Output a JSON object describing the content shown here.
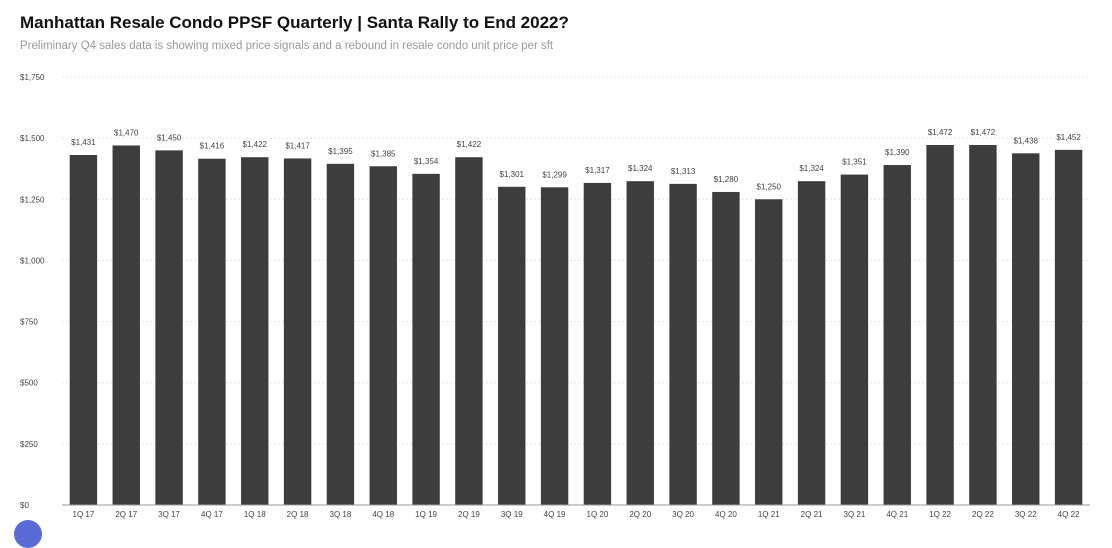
{
  "header": {
    "title": "Manhattan Resale Condo PPSF Quarterly | Santa Rally to End 2022?",
    "subtitle": "Preliminary Q4 sales data is showing mixed price signals and a rebound in resale condo unit price per sft"
  },
  "colors": {
    "bar": "#3d3d3d",
    "grid": "#e6e6e6",
    "axis": "#9a9a9a"
  },
  "chart_data": {
    "type": "bar",
    "title": "Manhattan Resale Condo PPSF Quarterly | Santa Rally to End 2022?",
    "subtitle": "Preliminary Q4 sales data is showing mixed price signals and a rebound in resale condo unit price per sft",
    "xlabel": "",
    "ylabel": "",
    "ylim": [
      0,
      1750
    ],
    "yticks": [
      0,
      250,
      500,
      750,
      1000,
      1250,
      1500,
      1750
    ],
    "ytick_labels": [
      "$0",
      "$250",
      "$500",
      "$750",
      "$1,000",
      "$1,250",
      "$1,500",
      "$1,750"
    ],
    "grid": true,
    "legend": "none",
    "categories": [
      "1Q 17",
      "2Q 17",
      "3Q 17",
      "4Q 17",
      "1Q 18",
      "2Q 18",
      "3Q 18",
      "4Q 18",
      "1Q 19",
      "2Q 19",
      "3Q 19",
      "4Q 19",
      "1Q 20",
      "2Q 20",
      "3Q 20",
      "4Q 20",
      "1Q 21",
      "2Q 21",
      "3Q 21",
      "4Q 21",
      "1Q 22",
      "2Q 22",
      "3Q 22",
      "4Q 22"
    ],
    "values": [
      1431,
      1470,
      1450,
      1416,
      1422,
      1417,
      1395,
      1385,
      1354,
      1422,
      1301,
      1299,
      1317,
      1324,
      1313,
      1280,
      1250,
      1324,
      1351,
      1390,
      1472,
      1472,
      1438,
      1452
    ],
    "data_labels": [
      "$1,431",
      "$1,470",
      "$1,450",
      "$1,416",
      "$1,422",
      "$1,417",
      "$1,395",
      "$1,385",
      "$1,354",
      "$1,422",
      "$1,301",
      "$1,299",
      "$1,317",
      "$1,324",
      "$1,313",
      "$1,280",
      "$1,250",
      "$1,324",
      "$1,351",
      "$1,390",
      "$1,472",
      "$1,472",
      "$1,438",
      "$1,452"
    ]
  }
}
